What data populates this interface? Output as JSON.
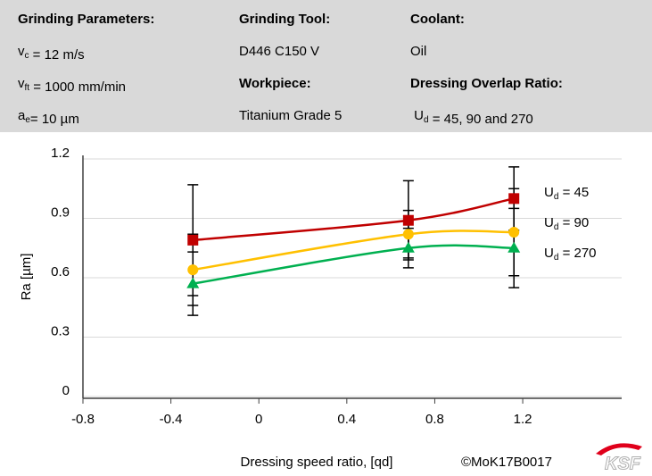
{
  "header": {
    "rows": [
      [
        [
          "Grinding Parameters:"
        ],
        [
          "Grinding Tool:"
        ],
        [
          "Coolant:"
        ]
      ],
      [
        [
          "v",
          {
            "sub": "c"
          },
          " = 12 m/s"
        ],
        [
          "D446 C150 V"
        ],
        [
          "Oil"
        ]
      ],
      [
        [
          "v",
          {
            "sub": "ft"
          },
          " = 1000 mm/min"
        ],
        [
          "Workpiece:"
        ],
        [
          "Dressing Overlap Ratio:"
        ]
      ],
      [
        [
          "a",
          {
            "sub": "e"
          },
          "= 10 µm"
        ],
        [
          "Titanium Grade 5"
        ],
        [
          " U",
          {
            "sub": "d"
          },
          " = 45, 90 and 270"
        ]
      ]
    ],
    "bold": [
      [
        true,
        true,
        true
      ],
      [
        false,
        false,
        false
      ],
      [
        false,
        true,
        true
      ],
      [
        false,
        false,
        false
      ]
    ]
  },
  "chart_data": {
    "type": "line",
    "x_label": "Dressing speed ratio, [qd]",
    "y_label": "Ra [µm]",
    "x": [
      -0.3,
      0.68,
      1.16
    ],
    "series": [
      {
        "name": "Ud = 45",
        "color": "#c00000",
        "marker": "square",
        "values": [
          0.79,
          0.89,
          1.0
        ],
        "errors": [
          0.28,
          0.2,
          0.16
        ]
      },
      {
        "name": "Ud = 90",
        "color": "#ffc000",
        "marker": "circle",
        "values": [
          0.64,
          0.82,
          0.83
        ],
        "errors": [
          0.18,
          0.12,
          0.22
        ]
      },
      {
        "name": "Ud = 270",
        "color": "#00b050",
        "marker": "triangle",
        "values": [
          0.57,
          0.75,
          0.75
        ],
        "errors": [
          0.16,
          0.1,
          0.2
        ]
      }
    ],
    "xlim": [
      -0.8,
      1.65
    ],
    "xticks": [
      -0.8,
      -0.4,
      0,
      0.4,
      0.8,
      1.2
    ],
    "ylim": [
      0,
      1.2
    ],
    "yticks": [
      0,
      0.3,
      0.6,
      0.9,
      1.2
    ],
    "grid": true
  },
  "footer": {
    "copyright": "©MoK17B0017",
    "logo": "KSF"
  }
}
